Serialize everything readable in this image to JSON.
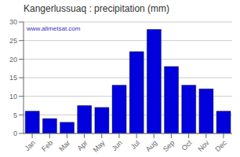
{
  "chart_data": {
    "type": "bar",
    "title": "Kangerlussuaq : precipitation (mm)",
    "categories": [
      "Jan",
      "Feb",
      "Mar",
      "Apr",
      "May",
      "Jun",
      "Jul",
      "Aug",
      "Sep",
      "Oct",
      "Nov",
      "Dec"
    ],
    "values": [
      6,
      4,
      3,
      7.5,
      7,
      13,
      22,
      28,
      18,
      13,
      12,
      6
    ],
    "color": "#0000dd",
    "ylim": [
      0,
      30
    ],
    "yticks": [
      0,
      5,
      10,
      15,
      20,
      25,
      30
    ],
    "grid": true,
    "annotations": [
      "www.allmetsat.com"
    ]
  }
}
